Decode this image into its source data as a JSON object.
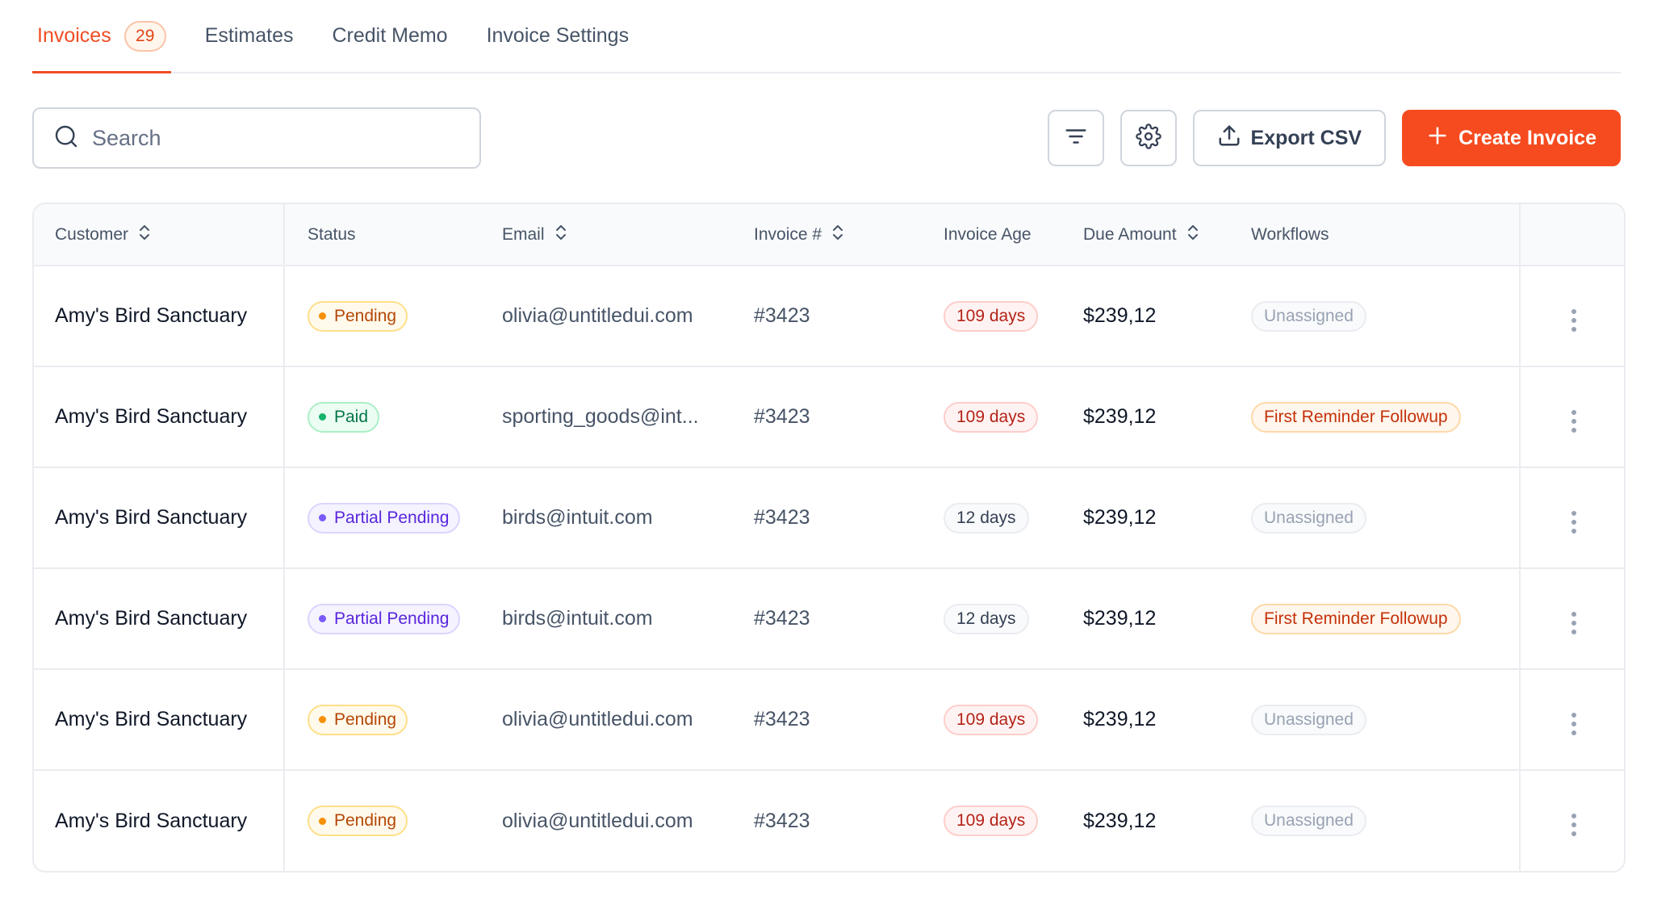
{
  "tabs": [
    {
      "label": "Invoices",
      "badge": "29",
      "active": true
    },
    {
      "label": "Estimates"
    },
    {
      "label": "Credit Memo"
    },
    {
      "label": "Invoice Settings"
    }
  ],
  "toolbar": {
    "search_placeholder": "Search",
    "export_label": "Export CSV",
    "create_label": "Create Invoice",
    "filter_icon": "filter-lines-icon",
    "settings_icon": "gear-icon"
  },
  "colors": {
    "accent": "#f64b1f",
    "pending": "#f79009",
    "paid": "#17b26a",
    "partial": "#7a5af8",
    "overdue": "#b42318"
  },
  "table": {
    "headers": {
      "customer": "Customer",
      "status": "Status",
      "email": "Email",
      "invoice": "Invoice #",
      "age": "Invoice Age",
      "due": "Due Amount",
      "workflows": "Workflows"
    },
    "rows": [
      {
        "customer": "Amy's Bird Sanctuary",
        "status": "Pending",
        "email": "olivia@untitledui.com",
        "invoice": "#3423",
        "age": "109 days",
        "due": "$239,12",
        "workflow": "Unassigned"
      },
      {
        "customer": "Amy's Bird Sanctuary",
        "status": "Paid",
        "email": "sporting_goods@int...",
        "invoice": "#3423",
        "age": "109 days",
        "due": "$239,12",
        "workflow": "First Reminder Followup"
      },
      {
        "customer": "Amy's Bird Sanctuary",
        "status": "Partial Pending",
        "email": "birds@intuit.com",
        "invoice": "#3423",
        "age": "12 days",
        "due": "$239,12",
        "workflow": "Unassigned"
      },
      {
        "customer": "Amy's Bird Sanctuary",
        "status": "Partial Pending",
        "email": "birds@intuit.com",
        "invoice": "#3423",
        "age": "12 days",
        "due": "$239,12",
        "workflow": "First Reminder Followup"
      },
      {
        "customer": "Amy's Bird Sanctuary",
        "status": "Pending",
        "email": "olivia@untitledui.com",
        "invoice": "#3423",
        "age": "109 days",
        "due": "$239,12",
        "workflow": "Unassigned"
      },
      {
        "customer": "Amy's Bird Sanctuary",
        "status": "Pending",
        "email": "olivia@untitledui.com",
        "invoice": "#3423",
        "age": "109 days",
        "due": "$239,12",
        "workflow": "Unassigned"
      }
    ]
  }
}
